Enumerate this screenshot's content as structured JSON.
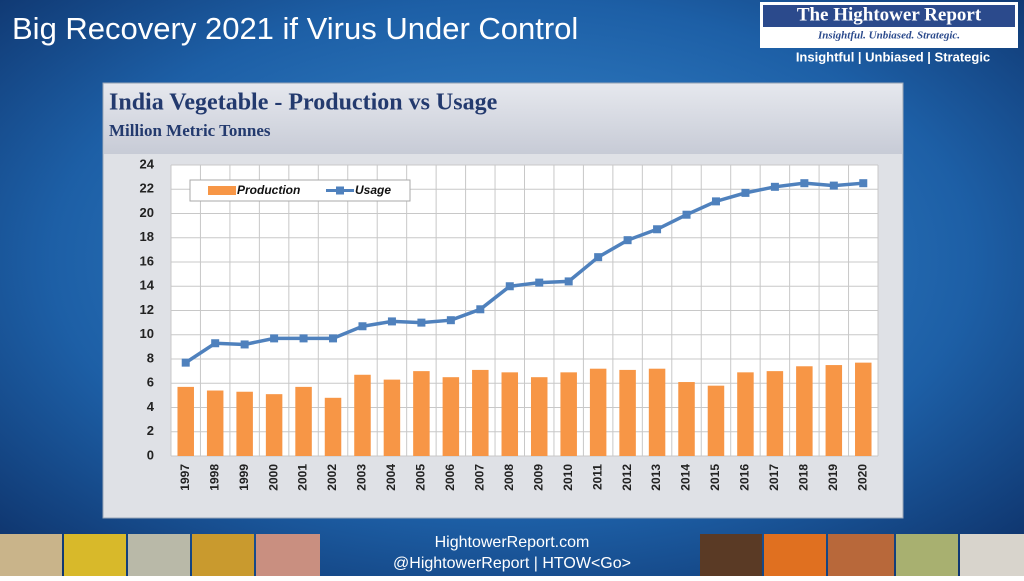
{
  "slide": {
    "title": "Big Recovery 2021 if Virus Under Control",
    "logo": {
      "name": "The Hightower Report",
      "motto": "Insightful. Unbiased. Strategic.",
      "tagline": "Insightful | Unbiased | Strategic"
    },
    "footer": {
      "site": "HightowerReport.com",
      "handle": "@HightowerReport | HTOW<Go>"
    }
  },
  "chart_data": {
    "type": "bar_line",
    "title": "India Vegetable - Production vs Usage",
    "subtitle": "Million Metric Tonnes",
    "categories": [
      "1997",
      "1998",
      "1999",
      "2000",
      "2001",
      "2002",
      "2003",
      "2004",
      "2005",
      "2006",
      "2007",
      "2008",
      "2009",
      "2010",
      "2011",
      "2012",
      "2013",
      "2014",
      "2015",
      "2016",
      "2017",
      "2018",
      "2019",
      "2020"
    ],
    "series": [
      {
        "name": "Production",
        "type": "bar",
        "color": "#f79646",
        "values": [
          5.7,
          5.4,
          5.3,
          5.1,
          5.7,
          4.8,
          6.7,
          6.3,
          7.0,
          6.5,
          7.1,
          6.9,
          6.5,
          6.9,
          7.2,
          7.1,
          7.2,
          6.1,
          5.8,
          6.9,
          7.0,
          7.4,
          7.5,
          7.7
        ]
      },
      {
        "name": "Usage",
        "type": "line",
        "color": "#4f81bd",
        "values": [
          7.7,
          9.3,
          9.2,
          9.7,
          9.7,
          9.7,
          10.7,
          11.1,
          11.0,
          11.2,
          12.1,
          14.0,
          14.3,
          14.4,
          16.4,
          17.8,
          18.7,
          19.9,
          21.0,
          21.7,
          22.2,
          22.5,
          22.3,
          22.5
        ]
      }
    ],
    "ylim": [
      0,
      24
    ],
    "yticks": [
      0,
      2,
      4,
      6,
      8,
      10,
      12,
      14,
      16,
      18,
      20,
      22,
      24
    ],
    "grid": true,
    "legend": "upper left"
  }
}
